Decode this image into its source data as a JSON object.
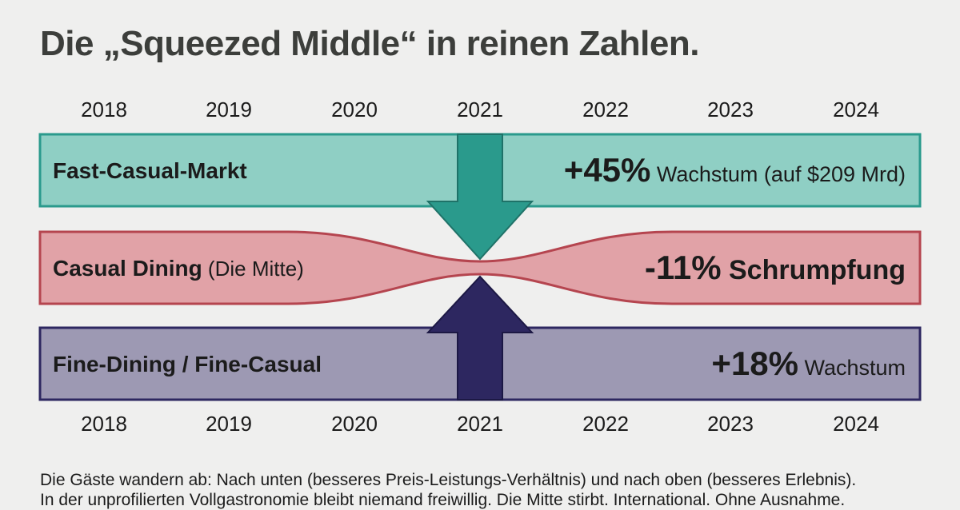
{
  "title": "Die „Squeezed Middle“ in reinen Zahlen.",
  "chart_data": {
    "type": "bar",
    "years": [
      "2018",
      "2019",
      "2020",
      "2021",
      "2022",
      "2023",
      "2024"
    ],
    "highlight_year": "2021",
    "series": [
      {
        "name": "Fast-Casual-Markt",
        "name_suffix": "",
        "value_label": "+45%",
        "value_desc": "Wachstum (auf $209 Mrd)",
        "change_percent": 45,
        "color": "#8fcfc4",
        "stroke": "#2a9a8c",
        "arrow": "down",
        "arrow_color": "#2a9a8c"
      },
      {
        "name": "Casual Dining",
        "name_suffix": "(Die Mitte)",
        "value_label": "-11%",
        "value_desc": "Schrumpfung",
        "change_percent": -11,
        "color": "#e1a2a7",
        "stroke": "#b5454f",
        "arrow": "none"
      },
      {
        "name": "Fine-Dining / Fine-Casual",
        "name_suffix": "",
        "value_label": "+18%",
        "value_desc": "Wachstum",
        "change_percent": 18,
        "color": "#9d99b3",
        "stroke": "#2d2760",
        "arrow": "up",
        "arrow_color": "#2d2760"
      }
    ]
  },
  "footer": {
    "line1": "Die Gäste wandern ab: Nach unten (besseres Preis-Leistungs-Verhältnis) und nach oben (besseres Erlebnis).",
    "line2": "In der unprofilierten Vollgastronomie bleibt niemand freiwillig. Die Mitte stirbt. International. Ohne Ausnahme."
  }
}
